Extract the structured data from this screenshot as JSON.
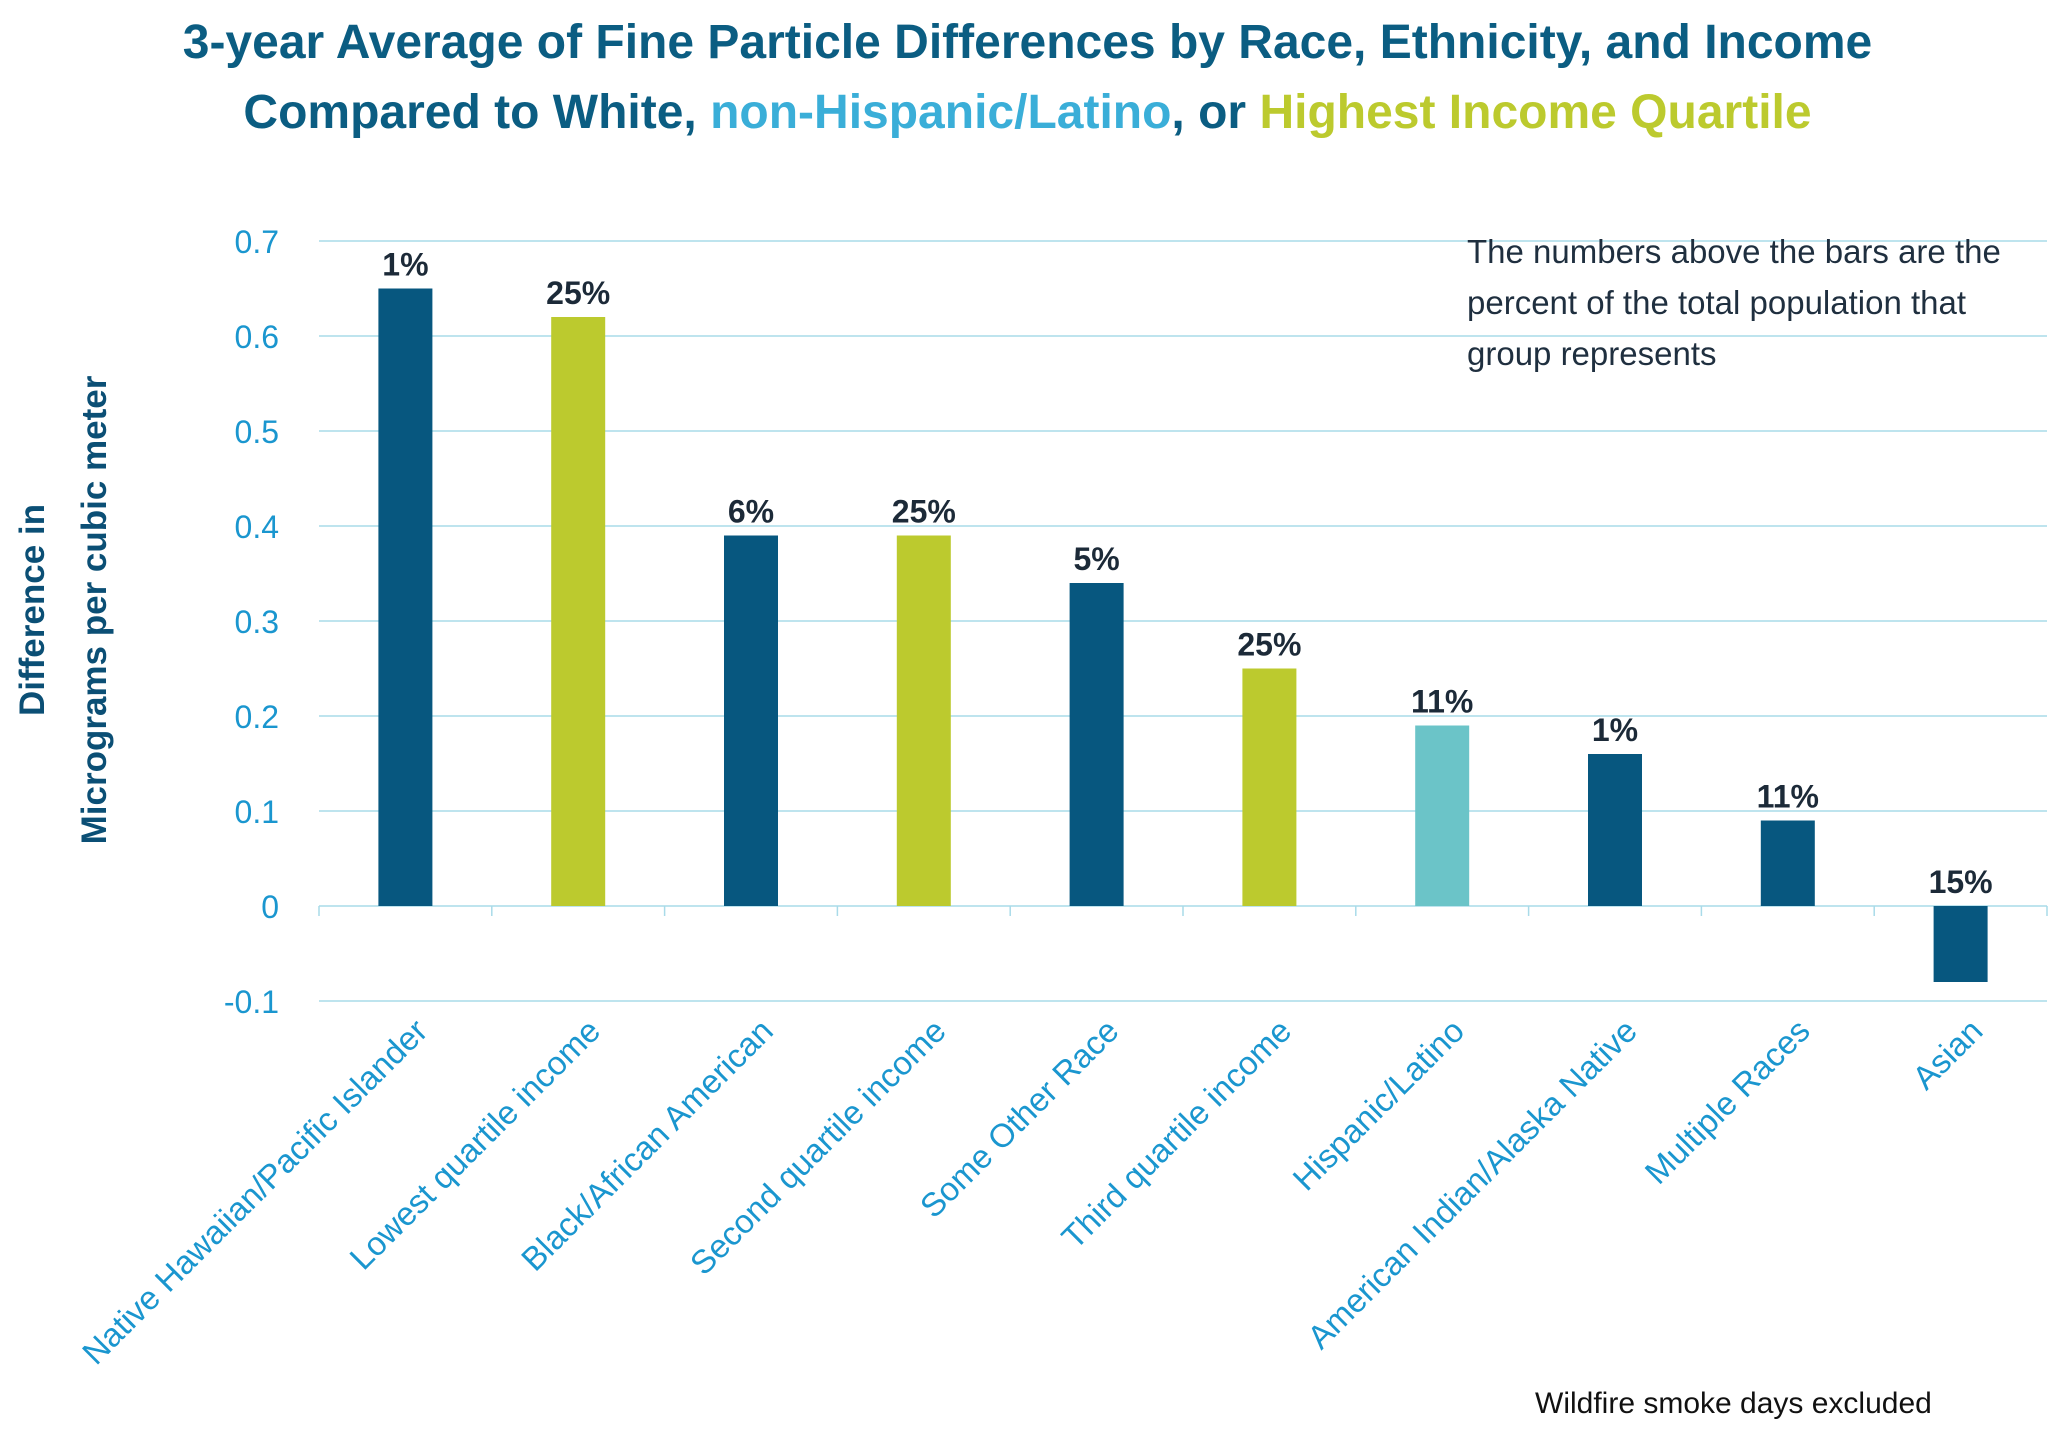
{
  "title": {
    "part1": "3-year Average of Fine Particle Differences by Race, Ethnicity, and Income",
    "part2": "Compared to White, ",
    "part3": "non-Hispanic/Latino",
    "part4": ", or ",
    "part5": "Highest Income Quartile"
  },
  "colors": {
    "race": "#07577f",
    "income": "#bcca2e",
    "ethnicity": "#6bc4c8",
    "title": "#0b5d82",
    "axis_text": "#1a96cf",
    "grid": "#a9dbe9"
  },
  "note": "The numbers above the bars are the percent of the total population that group represents",
  "footnote": "Wildfire smoke days excluded",
  "chart_data": {
    "type": "bar",
    "title": "3-year Average of Fine Particle Differences by Race, Ethnicity, and Income Compared to White, non-Hispanic/Latino, or Highest Income Quartile",
    "ylabel_lines": [
      "Difference in",
      "Micrograms per cubic meter"
    ],
    "xlabel": "",
    "ylim": [
      -0.1,
      0.7
    ],
    "yticks": [
      0.7,
      0.6,
      0.5,
      0.4,
      0.3,
      0.2,
      0.1,
      0,
      -0.1
    ],
    "ytick_labels": [
      "0.7",
      "0.6",
      "0.5",
      "0.4",
      "0.3",
      "0.2",
      "0.1",
      "0",
      "-0.1"
    ],
    "grid": true,
    "categories": [
      "Native Hawaiian/Pacific Islander",
      "Lowest quartile income",
      "Black/African American",
      "Second quartile income",
      "Some Other Race",
      "Third quartile income",
      "Hispanic/Latino",
      "American Indian/Alaska Native",
      "Multiple Races",
      "Asian"
    ],
    "values": [
      0.65,
      0.62,
      0.39,
      0.39,
      0.34,
      0.25,
      0.19,
      0.16,
      0.09,
      -0.08
    ],
    "data_labels": [
      "1%",
      "25%",
      "6%",
      "25%",
      "5%",
      "25%",
      "11%",
      "1%",
      "11%",
      "15%"
    ],
    "groups": [
      "race",
      "income",
      "race",
      "income",
      "race",
      "income",
      "ethnicity",
      "race",
      "race",
      "race"
    ]
  }
}
